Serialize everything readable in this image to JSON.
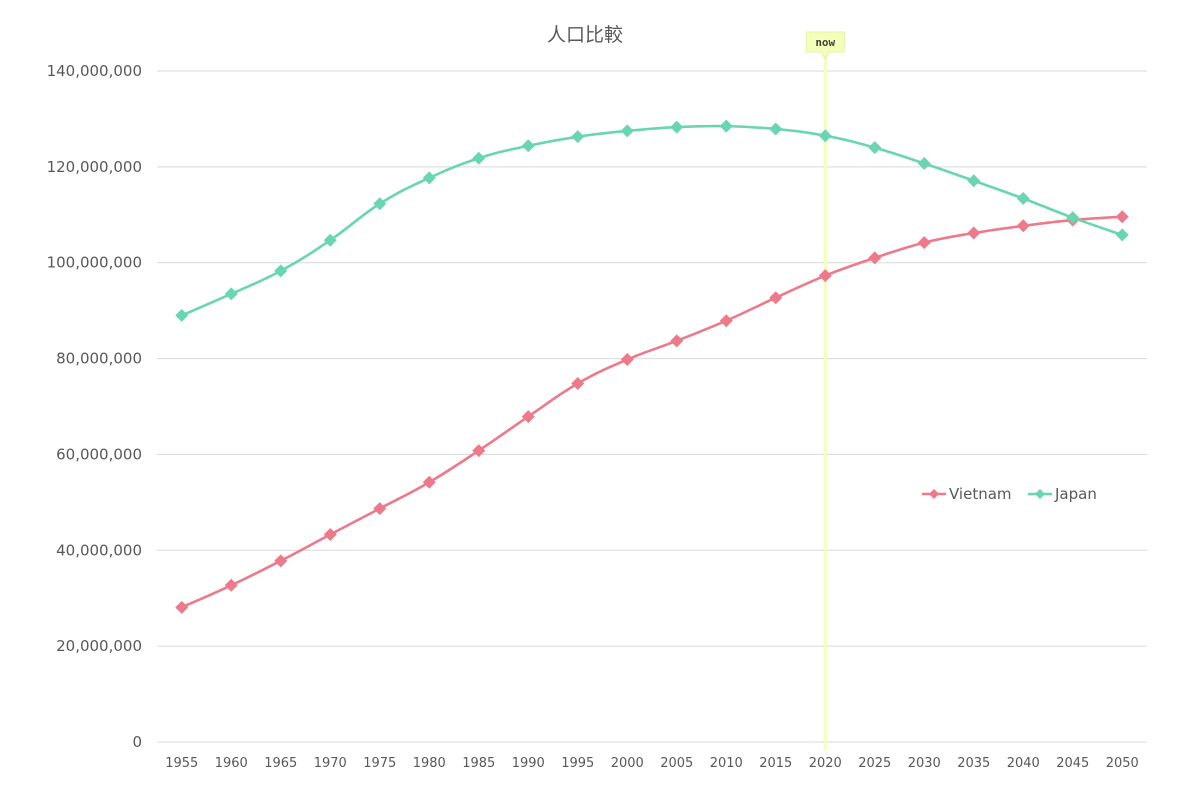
{
  "chart_data": {
    "type": "line",
    "title": "人口比較",
    "xlabel": "",
    "ylabel": "",
    "x": [
      "1955",
      "1960",
      "1965",
      "1970",
      "1975",
      "1980",
      "1985",
      "1990",
      "1995",
      "2000",
      "2005",
      "2010",
      "2015",
      "2020",
      "2025",
      "2030",
      "2035",
      "2040",
      "2045",
      "2050"
    ],
    "yticks": [
      "0",
      "20,000,000",
      "40,000,000",
      "60,000,000",
      "80,000,000",
      "100,000,000",
      "120,000,000",
      "140,000,000"
    ],
    "ylim": [
      0,
      140000000
    ],
    "grid": true,
    "legend": "right",
    "series": [
      {
        "name": "Vietnam",
        "color": "#ec7a8b",
        "marker": "diamond",
        "values": [
          28100000,
          32700000,
          37800000,
          43300000,
          48700000,
          54200000,
          60800000,
          67900000,
          74800000,
          79800000,
          83700000,
          87900000,
          92700000,
          97300000,
          101000000,
          104200000,
          106200000,
          107700000,
          108900000,
          109600000
        ]
      },
      {
        "name": "Japan",
        "color": "#6ad6b0",
        "marker": "diamond",
        "values": [
          89000000,
          93500000,
          98300000,
          104700000,
          112300000,
          117700000,
          121800000,
          124400000,
          126300000,
          127500000,
          128300000,
          128500000,
          127900000,
          126500000,
          124000000,
          120700000,
          117100000,
          113400000,
          109400000,
          105800000
        ]
      }
    ],
    "annotations": [
      {
        "text": "now",
        "x": "2020",
        "color": "#f4ffb8"
      }
    ]
  }
}
